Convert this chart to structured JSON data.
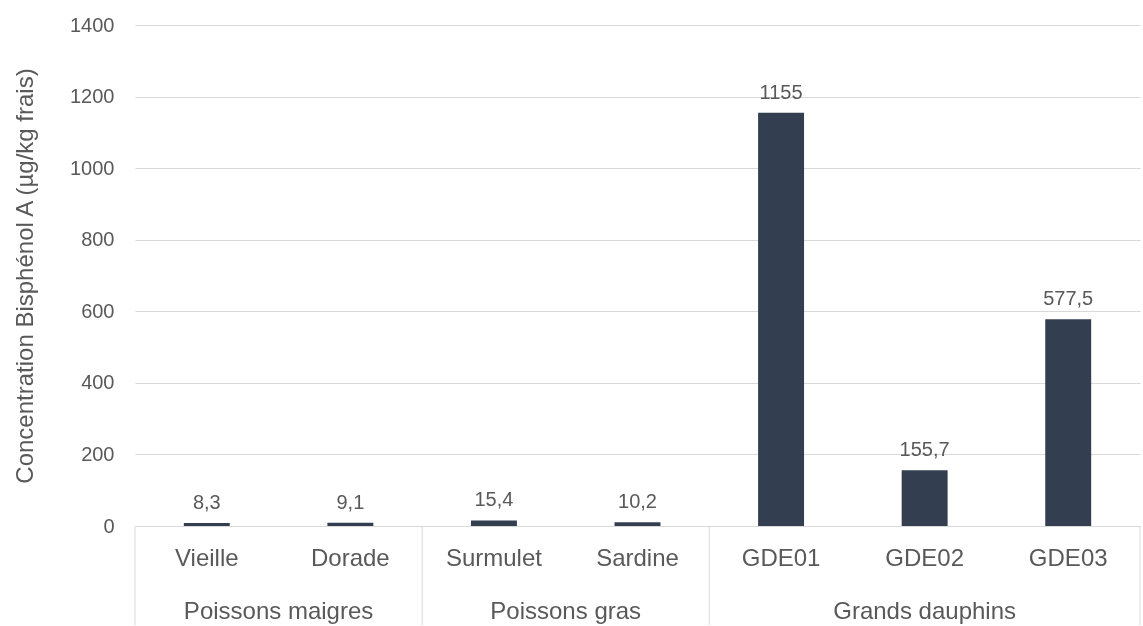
{
  "chart_data": {
    "type": "bar",
    "ylabel": "Concentration Bisphénol A (µg/kg frais)",
    "categories": [
      "Vieille",
      "Dorade",
      "Surmulet",
      "Sardine",
      "GDE01",
      "GDE02",
      "GDE03"
    ],
    "values": [
      8.3,
      9.1,
      15.4,
      10.2,
      1155,
      155.7,
      577.5
    ],
    "value_labels": [
      "8,3",
      "9,1",
      "15,4",
      "10,2",
      "1155",
      "155,7",
      "577,5"
    ],
    "color": "#333f50",
    "ylim": [
      0,
      1400
    ],
    "yticks": [
      0,
      200,
      400,
      600,
      800,
      1000,
      1200,
      1400
    ],
    "grid": "y",
    "annotations": [
      "Poissons maigres",
      "Poissons gras",
      "Grands dauphins"
    ]
  }
}
